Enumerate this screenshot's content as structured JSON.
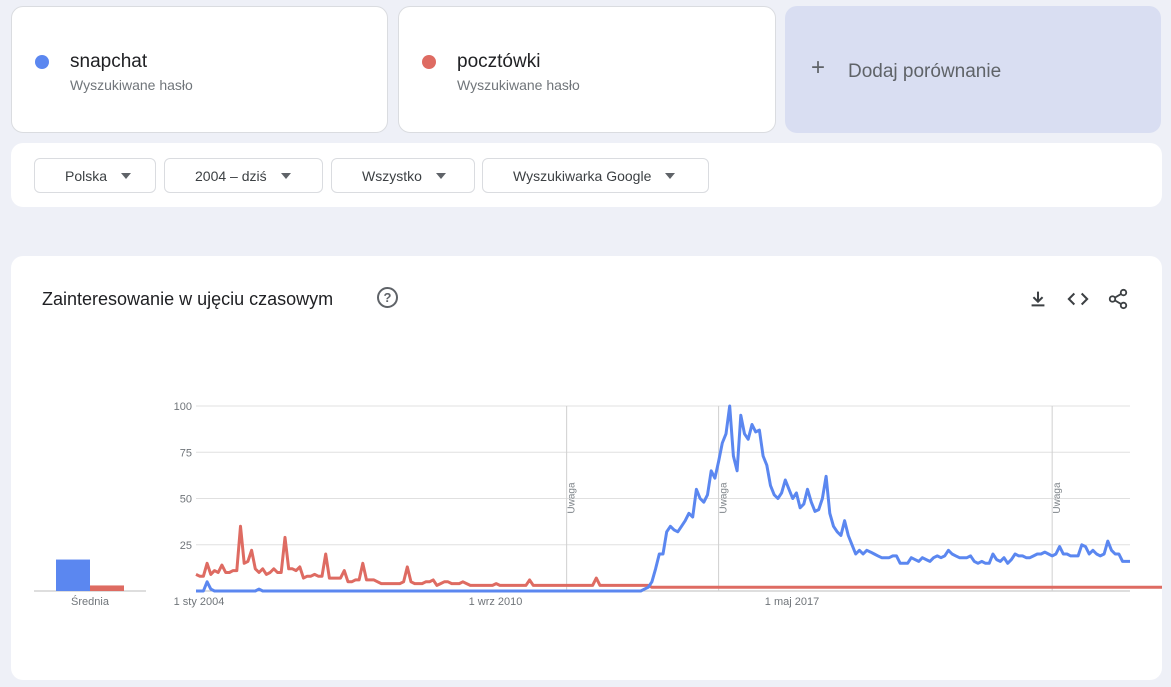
{
  "terms": [
    {
      "name": "snapchat",
      "subtitle": "Wyszukiwane hasło",
      "color": "#5b87f0"
    },
    {
      "name": "pocztówki",
      "subtitle": "Wyszukiwane hasło",
      "color": "#de6b62"
    }
  ],
  "add_compare": {
    "plus": "+",
    "label": "Dodaj porównanie"
  },
  "filters": {
    "region": "Polska",
    "period": "2004 – dziś",
    "category": "Wszystko",
    "source": "Wyszukiwarka Google"
  },
  "chart_card": {
    "title": "Zainteresowanie w ujęciu czasowym",
    "help": "?"
  },
  "chart_data": {
    "type": "line",
    "ylim": [
      0,
      100
    ],
    "yticks": [
      100,
      75,
      50,
      25
    ],
    "xticks": [
      {
        "label": "1 sty 2004",
        "month": 0
      },
      {
        "label": "1 wrz 2010",
        "month": 80
      },
      {
        "label": "1 maj 2017",
        "month": 160
      }
    ],
    "notes": [
      {
        "label": "Uwaga",
        "month": 100
      },
      {
        "label": "Uwaga",
        "month": 141
      },
      {
        "label": "Uwaga",
        "month": 231
      }
    ],
    "average": {
      "label": "Średnia",
      "values": [
        17,
        3
      ]
    },
    "x_start": "2004-01",
    "series": [
      {
        "name": "snapchat",
        "color": "#5b87f0",
        "values": [
          0,
          0,
          0,
          5,
          1,
          0,
          0,
          0,
          0,
          0,
          0,
          0,
          0,
          0,
          0,
          0,
          0,
          1,
          0,
          0,
          0,
          0,
          0,
          0,
          0,
          0,
          0,
          0,
          0,
          0,
          0,
          0,
          0,
          0,
          0,
          0,
          0,
          0,
          0,
          0,
          0,
          0,
          0,
          0,
          0,
          0,
          0,
          0,
          0,
          0,
          0,
          0,
          0,
          0,
          0,
          0,
          0,
          0,
          0,
          0,
          0,
          0,
          0,
          0,
          0,
          0,
          0,
          0,
          0,
          0,
          0,
          0,
          0,
          0,
          0,
          0,
          0,
          0,
          0,
          0,
          0,
          0,
          0,
          0,
          0,
          0,
          0,
          0,
          0,
          0,
          0,
          0,
          0,
          0,
          0,
          0,
          0,
          0,
          0,
          0,
          0,
          0,
          0,
          0,
          0,
          0,
          0,
          0,
          0,
          0,
          0,
          0,
          0,
          0,
          0,
          0,
          0,
          0,
          0,
          0,
          0,
          1,
          2,
          5,
          12,
          20,
          20,
          32,
          35,
          33,
          32,
          35,
          38,
          42,
          40,
          55,
          50,
          48,
          52,
          65,
          61,
          70,
          80,
          85,
          100,
          73,
          65,
          95,
          85,
          82,
          90,
          86,
          87,
          73,
          68,
          57,
          52,
          50,
          53,
          60,
          55,
          50,
          53,
          45,
          47,
          55,
          48,
          43,
          44,
          50,
          62,
          42,
          35,
          32,
          30,
          38,
          30,
          25,
          20,
          22,
          20,
          22,
          21,
          20,
          19,
          18,
          18,
          18,
          19,
          19,
          15,
          15,
          15,
          18,
          17,
          16,
          18,
          17,
          16,
          18,
          19,
          18,
          19,
          22,
          20,
          19,
          18,
          18,
          18,
          19,
          16,
          15,
          16,
          15,
          15,
          20,
          17,
          16,
          18,
          15,
          17,
          20,
          19,
          19,
          18,
          18,
          19,
          20,
          20,
          21,
          20,
          19,
          20,
          24,
          20,
          20,
          19,
          19,
          19,
          25,
          24,
          20,
          22,
          20,
          19,
          20,
          27,
          22,
          20,
          20,
          16,
          16,
          16
        ]
      },
      {
        "name": "pocztówki",
        "color": "#de6b62",
        "values": [
          9,
          8,
          8,
          15,
          9,
          11,
          10,
          14,
          10,
          10,
          11,
          11,
          35,
          15,
          16,
          22,
          12,
          10,
          12,
          9,
          10,
          12,
          10,
          10,
          29,
          12,
          12,
          11,
          13,
          7,
          8,
          8,
          9,
          8,
          8,
          20,
          7,
          7,
          7,
          7,
          11,
          5,
          5,
          6,
          6,
          15,
          6,
          6,
          6,
          5,
          4,
          4,
          4,
          4,
          4,
          4,
          5,
          13,
          5,
          4,
          4,
          4,
          5,
          5,
          6,
          3,
          4,
          5,
          5,
          4,
          4,
          4,
          5,
          4,
          3,
          3,
          3,
          3,
          3,
          3,
          3,
          4,
          3,
          3,
          3,
          3,
          3,
          3,
          3,
          3,
          6,
          3,
          3,
          3,
          3,
          3,
          3,
          3,
          3,
          3,
          3,
          3,
          3,
          3,
          3,
          3,
          3,
          3,
          7,
          3,
          3,
          3,
          3,
          3,
          3,
          3,
          3,
          3,
          3,
          3,
          3,
          3,
          3,
          2,
          2,
          2,
          2,
          2,
          2,
          2,
          2,
          2,
          2,
          2,
          2,
          2,
          2,
          2,
          2,
          2,
          2,
          2,
          2,
          2,
          2,
          2,
          2,
          2,
          2,
          2,
          2,
          2,
          2,
          2,
          2,
          2,
          2,
          2,
          2,
          2,
          2,
          2,
          2,
          2,
          2,
          2,
          2,
          2,
          2,
          2,
          2,
          2,
          2,
          2,
          2,
          2,
          2,
          2,
          2,
          2,
          2,
          2,
          2,
          2,
          2,
          2,
          2,
          2,
          2,
          2,
          2,
          2,
          2,
          2,
          2,
          2,
          2,
          2,
          2,
          2,
          2,
          2,
          2,
          2,
          2,
          2,
          2,
          2,
          2,
          2,
          2,
          2,
          2,
          2,
          2,
          2,
          2,
          2,
          2,
          2,
          2,
          2,
          2,
          2,
          2,
          2,
          2,
          2,
          2,
          2,
          2,
          2,
          2,
          2,
          2,
          2,
          2,
          2,
          2,
          2,
          2,
          2,
          2,
          2,
          2,
          2,
          2,
          2,
          2,
          2,
          2,
          2,
          2,
          2,
          2,
          2,
          2,
          2,
          2,
          2,
          2,
          2,
          2,
          2,
          2,
          2,
          2,
          2,
          2,
          2
        ]
      }
    ]
  }
}
